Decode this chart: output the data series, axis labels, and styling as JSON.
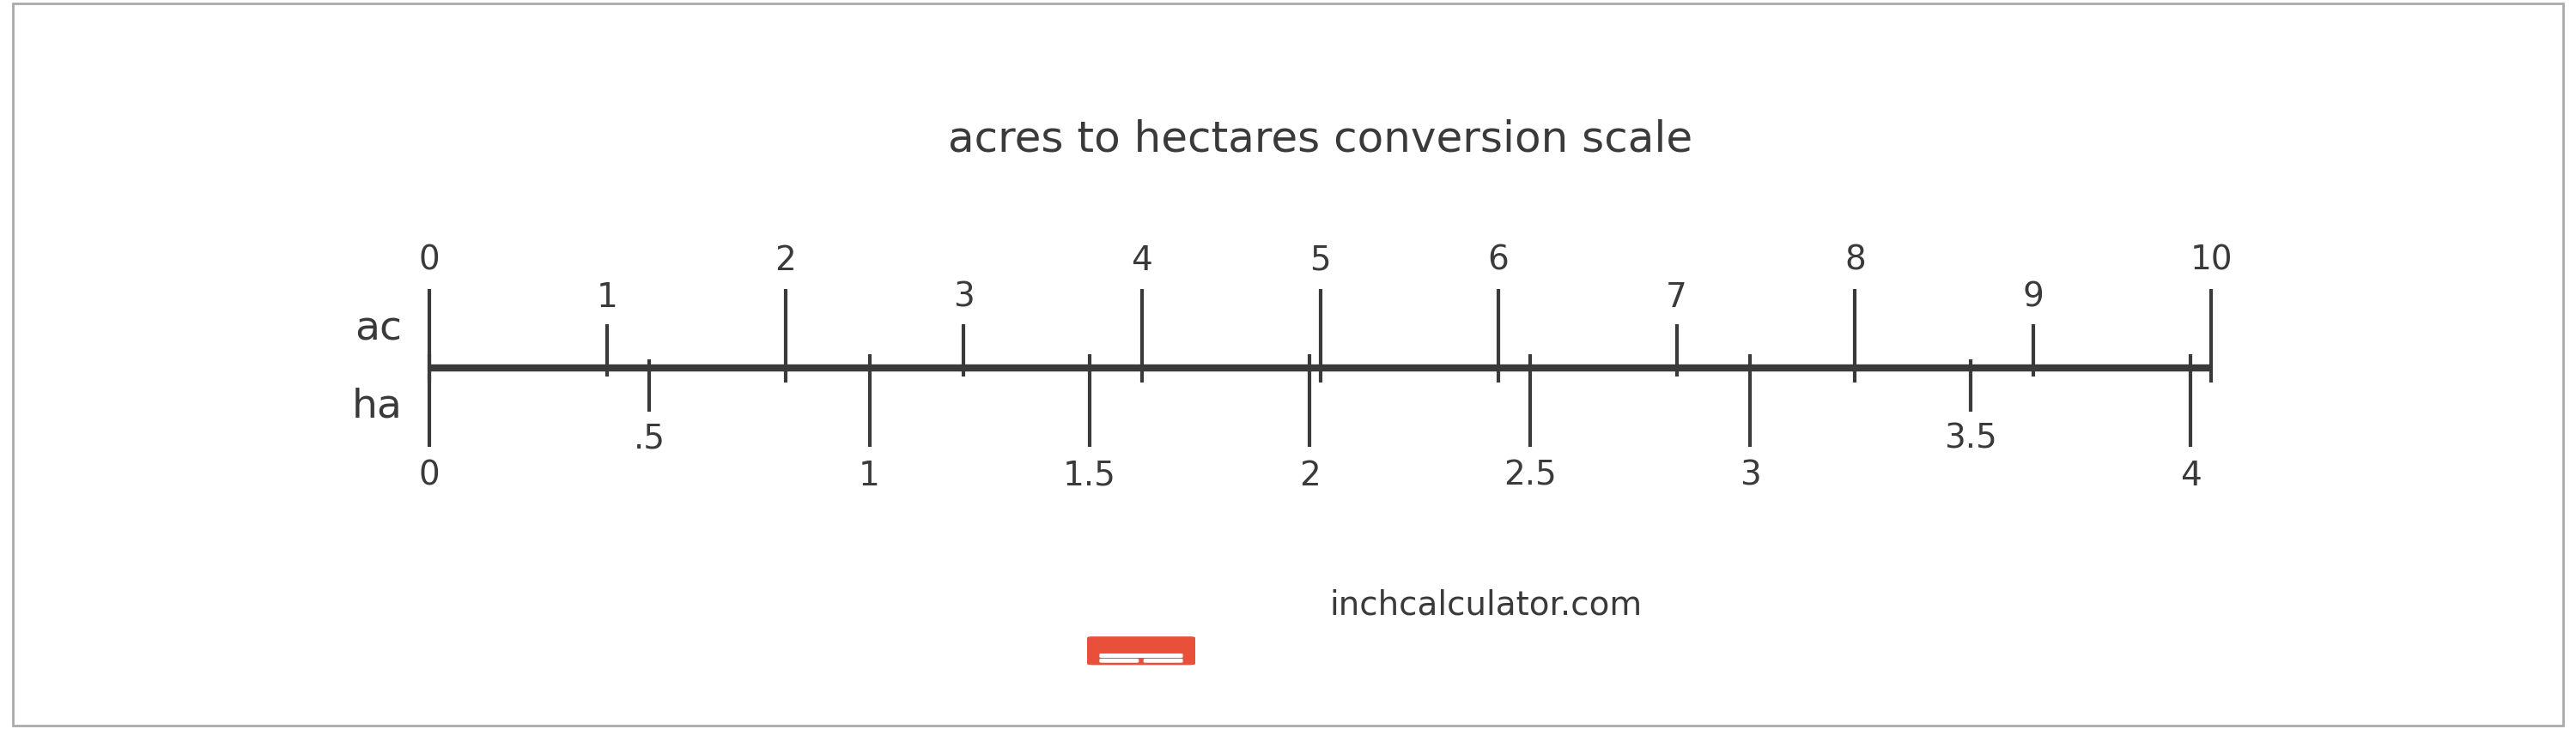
{
  "title": "acres to hectares conversion scale",
  "title_fontsize": 36,
  "title_color": "#3a3a3a",
  "background_color": "#ffffff",
  "border_color": "#aaaaaa",
  "scale_line_color": "#3a3a3a",
  "scale_line_lw": 6,
  "tick_color": "#3a3a3a",
  "tick_lw": 3,
  "label_ac": "ac",
  "label_ha": "ha",
  "label_fontsize": 34,
  "tick_label_fontsize": 28,
  "conversion_factor": 0.404686,
  "ac_major_ticks": [
    0,
    2,
    4,
    5,
    6,
    8,
    10
  ],
  "ac_minor_ticks": [
    1,
    3,
    7,
    9
  ],
  "ha_major_ticks": [
    0,
    1,
    1.5,
    2,
    2.5,
    3,
    4
  ],
  "ha_minor_ticks": [
    0.5,
    3.5
  ],
  "ac_major_tick_labels": [
    "0",
    "2",
    "4",
    "5",
    "6",
    "8",
    "10"
  ],
  "ac_minor_tick_labels": [
    "1",
    "3",
    "7",
    "9"
  ],
  "ha_major_tick_labels": [
    "0",
    "1",
    "1.5",
    "2",
    "2.5",
    "3",
    "4"
  ],
  "ha_minor_tick_labels": [
    ".5",
    "3.5"
  ],
  "ac_major_tick_up": 0.45,
  "ac_major_tick_down": 0.08,
  "ac_minor_tick_up": 0.25,
  "ac_minor_tick_down": 0.05,
  "ha_major_tick_up": 0.08,
  "ha_major_tick_down": 0.45,
  "ha_minor_tick_up": 0.05,
  "ha_minor_tick_down": 0.25,
  "watermark_text": "inchcalculator.com",
  "watermark_fontsize": 28,
  "watermark_color": "#3a3a3a",
  "icon_color": "#e8503a"
}
